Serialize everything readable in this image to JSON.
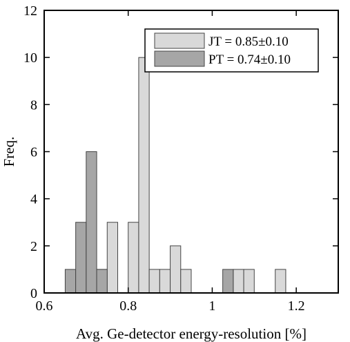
{
  "chart_data": {
    "type": "bar",
    "title": "",
    "xlabel": "Avg. Ge-detector energy-resolution [%]",
    "ylabel": "Freq.",
    "xlim": [
      0.6,
      1.3
    ],
    "ylim": [
      0,
      12
    ],
    "xticks": [
      "0.6",
      "0.8",
      "1",
      "1.2"
    ],
    "yticks": [
      "0",
      "2",
      "4",
      "6",
      "8",
      "10",
      "12"
    ],
    "bin_width": 0.025,
    "legend_position": "top-right",
    "grid": false,
    "series": [
      {
        "name": "JT = 0.85±0.10",
        "color": "#d9d9d9",
        "bins": [
          {
            "x0": 0.7,
            "count": 1
          },
          {
            "x0": 0.725,
            "count": 1
          },
          {
            "x0": 0.75,
            "count": 3
          },
          {
            "x0": 0.8,
            "count": 3
          },
          {
            "x0": 0.825,
            "count": 10
          },
          {
            "x0": 0.85,
            "count": 1
          },
          {
            "x0": 0.875,
            "count": 1
          },
          {
            "x0": 0.9,
            "count": 2
          },
          {
            "x0": 0.925,
            "count": 1
          },
          {
            "x0": 1.05,
            "count": 1
          },
          {
            "x0": 1.075,
            "count": 1
          },
          {
            "x0": 1.15,
            "count": 1
          }
        ]
      },
      {
        "name": "PT = 0.74±0.10",
        "color": "#a6a6a6",
        "bins": [
          {
            "x0": 0.65,
            "count": 1
          },
          {
            "x0": 0.675,
            "count": 3
          },
          {
            "x0": 0.7,
            "count": 6
          },
          {
            "x0": 0.725,
            "count": 1
          },
          {
            "x0": 1.025,
            "count": 1
          }
        ]
      }
    ]
  }
}
